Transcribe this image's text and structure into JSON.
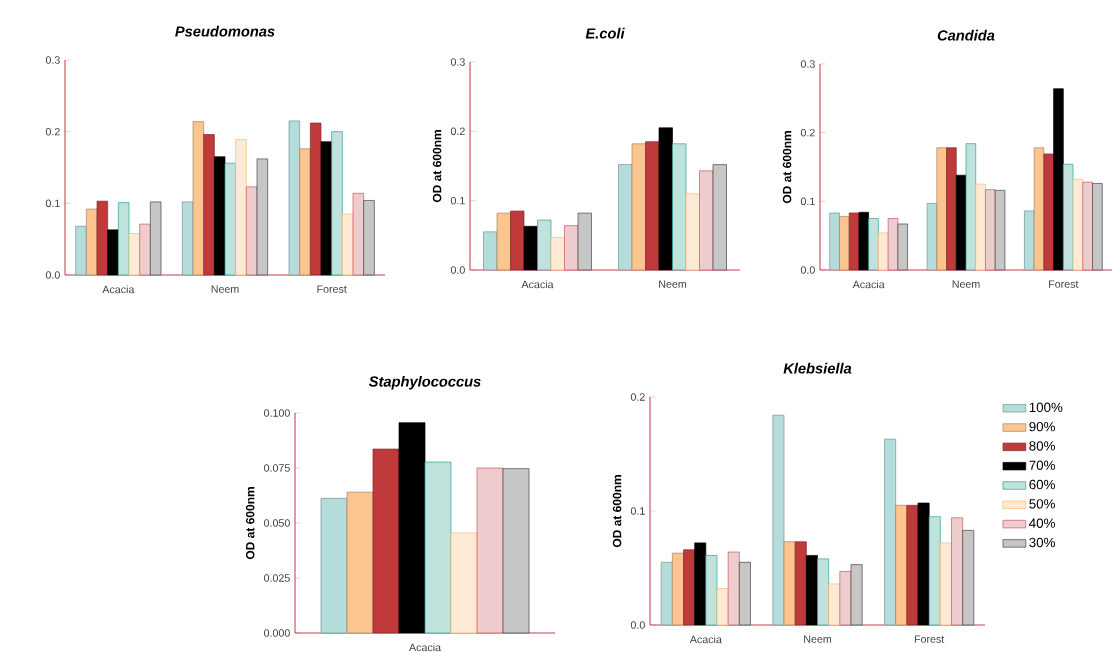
{
  "chart_data": [
    {
      "type": "bar",
      "title": "Pseudomonas",
      "categories": [
        "Acacia",
        "Neem",
        "Forest"
      ],
      "ylim": [
        0,
        0.3
      ],
      "yticks": [
        {
          "value": 0,
          "label": "0.0"
        },
        0.1,
        0.2,
        0.3
      ],
      "series": [
        {
          "color": "#b3dcdb",
          "values": [
            0.068,
            0.102,
            0.215
          ]
        },
        {
          "color": "#fcc58f",
          "values": [
            0.092,
            0.214,
            0.176
          ]
        },
        {
          "color": "#c0393b",
          "values": [
            0.103,
            0.196,
            0.212
          ]
        },
        {
          "color": "#000000",
          "values": [
            0.063,
            0.165,
            0.186
          ]
        },
        {
          "color": "#2a9d8f",
          "values": [
            0.101,
            0.156,
            0.2
          ]
        },
        {
          "color": "#fcb870",
          "values": [
            0.058,
            0.189,
            0.085
          ]
        },
        {
          "color": "#c8505a",
          "values": [
            0.071,
            0.123,
            0.114
          ]
        },
        {
          "color": "#404040",
          "values": [
            0.102,
            0.162,
            0.104
          ]
        }
      ]
    },
    {
      "type": "bar",
      "title": "E.coli",
      "ylabel": "OD at 600nm",
      "categories": [
        "Acacia",
        "Neem"
      ],
      "ylim": [
        0,
        0.3
      ],
      "yticks": [
        {
          "value": 0,
          "label": "0.0"
        },
        0.1,
        0.2,
        0.3
      ],
      "series": [
        {
          "color": "#b3dcdb",
          "values": [
            0.055,
            0.152
          ]
        },
        {
          "color": "#fcc58f",
          "values": [
            0.082,
            0.182
          ]
        },
        {
          "color": "#c0393b",
          "values": [
            0.085,
            0.185
          ]
        },
        {
          "color": "#000000",
          "values": [
            0.063,
            0.205
          ]
        },
        {
          "color": "#2a9d8f",
          "values": [
            0.072,
            0.182
          ]
        },
        {
          "color": "#fcb870",
          "values": [
            0.047,
            0.11
          ]
        },
        {
          "color": "#c8505a",
          "values": [
            0.064,
            0.143
          ]
        },
        {
          "color": "#404040",
          "values": [
            0.082,
            0.152
          ]
        }
      ]
    },
    {
      "type": "bar",
      "title": "Candida",
      "ylabel": "OD at 600nm",
      "categories": [
        "Acacia",
        "Neem",
        "Forest"
      ],
      "ylim": [
        0,
        0.3
      ],
      "yticks": [
        {
          "value": 0,
          "label": "0.0"
        },
        0.1,
        0.2,
        0.3
      ],
      "series": [
        {
          "color": "#b3dcdb",
          "values": [
            0.083,
            0.097,
            0.086
          ]
        },
        {
          "color": "#fcc58f",
          "values": [
            0.078,
            0.178,
            0.178
          ]
        },
        {
          "color": "#c0393b",
          "values": [
            0.083,
            0.178,
            0.169
          ]
        },
        {
          "color": "#000000",
          "values": [
            0.084,
            0.138,
            0.264
          ]
        },
        {
          "color": "#2a9d8f",
          "values": [
            0.075,
            0.184,
            0.154
          ]
        },
        {
          "color": "#fcb870",
          "values": [
            0.054,
            0.125,
            0.132
          ]
        },
        {
          "color": "#c8505a",
          "values": [
            0.075,
            0.117,
            0.128
          ]
        },
        {
          "color": "#404040",
          "values": [
            0.067,
            0.116,
            0.126
          ]
        }
      ]
    },
    {
      "type": "bar",
      "title": "Staphylococcus",
      "ylabel": "OD at 600nm",
      "categories": [
        "Acacia"
      ],
      "ylim": [
        0,
        0.1
      ],
      "yticks": [
        {
          "value": 0,
          "label": "0.000"
        },
        0.025,
        {
          "value": 0.05,
          "label": "0.050"
        },
        0.075,
        {
          "value": 0.1,
          "label": "0.100"
        }
      ],
      "series": [
        {
          "color": "#b3dcdb",
          "values": [
            0.0612
          ]
        },
        {
          "color": "#fcc58f",
          "values": [
            0.064
          ]
        },
        {
          "color": "#c0393b",
          "values": [
            0.0836
          ]
        },
        {
          "color": "#000000",
          "values": [
            0.0956
          ]
        },
        {
          "color": "#2a9d8f",
          "values": [
            0.0777
          ]
        },
        {
          "color": "#fcb870",
          "values": [
            0.0455
          ]
        },
        {
          "color": "#c8505a",
          "values": [
            0.075
          ]
        },
        {
          "color": "#404040",
          "values": [
            0.0747
          ]
        }
      ]
    },
    {
      "type": "bar",
      "title": "Klebsiella",
      "ylabel": "OD at 600nm",
      "categories": [
        "Acacia",
        "Neem",
        "Forest"
      ],
      "ylim": [
        0,
        0.2
      ],
      "yticks": [
        {
          "value": 0,
          "label": "0.0"
        },
        0.1,
        0.2
      ],
      "legend": "right",
      "series": [
        {
          "name": "100%",
          "color": "#b3dcdb",
          "values": [
            0.055,
            0.184,
            0.163
          ]
        },
        {
          "name": "90%",
          "color": "#fcc58f",
          "values": [
            0.063,
            0.073,
            0.105
          ]
        },
        {
          "name": "80%",
          "color": "#c0393b",
          "values": [
            0.066,
            0.073,
            0.105
          ]
        },
        {
          "name": "70%",
          "color": "#000000",
          "values": [
            0.072,
            0.061,
            0.107
          ]
        },
        {
          "name": "60%",
          "color": "#2a9d8f",
          "values": [
            0.061,
            0.058,
            0.095
          ]
        },
        {
          "name": "50%",
          "color": "#fcb870",
          "values": [
            0.032,
            0.036,
            0.072
          ]
        },
        {
          "name": "40%",
          "color": "#c8505a",
          "values": [
            0.064,
            0.047,
            0.094
          ]
        },
        {
          "name": "30%",
          "color": "#404040",
          "values": [
            0.055,
            0.053,
            0.083
          ]
        }
      ]
    }
  ]
}
